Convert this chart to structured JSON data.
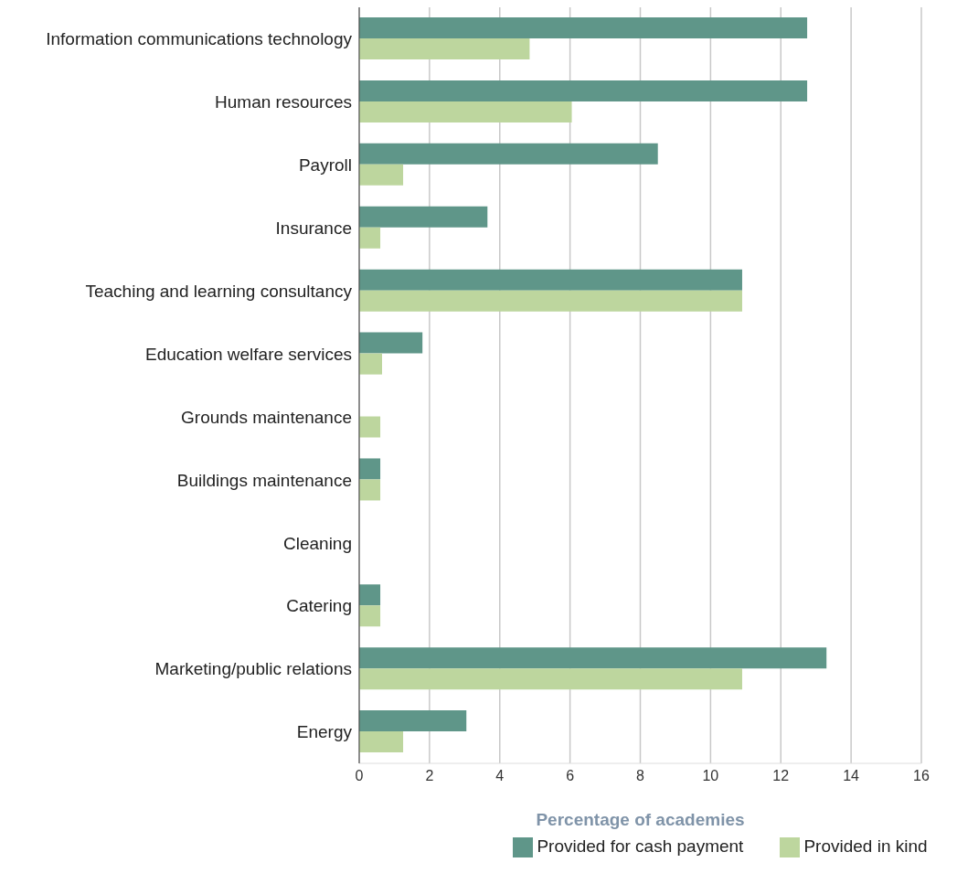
{
  "chart_data": {
    "type": "bar",
    "orientation": "horizontal",
    "xlabel": "Percentage of academies",
    "categories": [
      "Information communications technology",
      "Human resources",
      "Payroll",
      "Insurance",
      "Teaching and learning consultancy",
      "Education welfare services",
      "Grounds maintenance",
      "Buildings maintenance",
      "Cleaning",
      "Catering",
      "Marketing/public relations",
      "Energy"
    ],
    "series": [
      {
        "name": "Provided for cash payment",
        "color": "#5f9689",
        "values": [
          12.75,
          12.75,
          8.5,
          3.65,
          10.9,
          1.8,
          0,
          0.6,
          0,
          0.6,
          13.3,
          3.05
        ]
      },
      {
        "name": "Provided in kind",
        "color": "#bdd69e",
        "values": [
          4.85,
          6.05,
          1.25,
          0.6,
          10.9,
          0.65,
          0.6,
          0.6,
          0,
          0.6,
          10.9,
          1.25
        ]
      }
    ],
    "xlim": [
      0,
      16
    ],
    "xticks": [
      0,
      2,
      4,
      6,
      8,
      10,
      12,
      14,
      16
    ],
    "grid": "x",
    "legend": "bottom"
  }
}
